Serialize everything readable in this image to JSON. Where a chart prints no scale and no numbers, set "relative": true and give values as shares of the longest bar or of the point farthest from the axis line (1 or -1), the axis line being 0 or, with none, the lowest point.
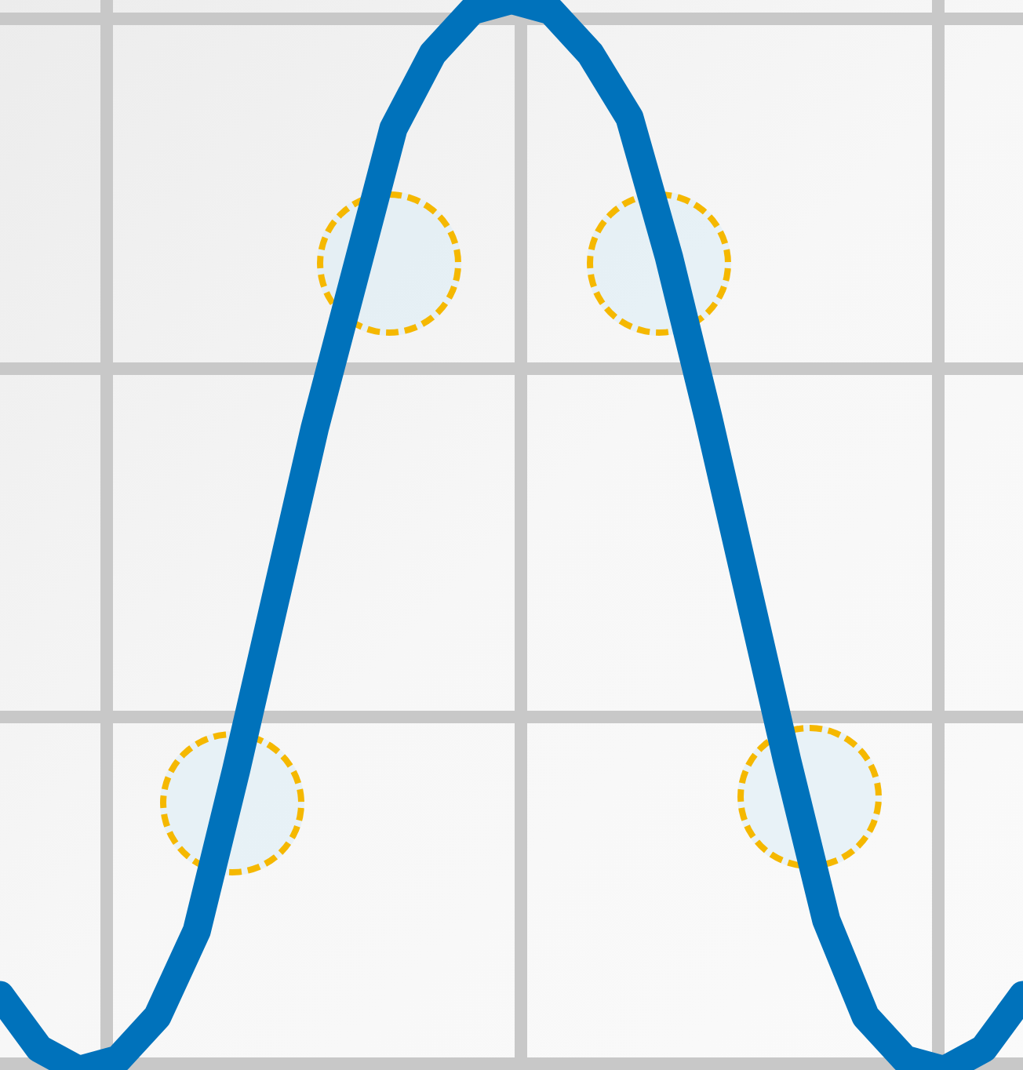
{
  "chart_data": {
    "type": "line",
    "relative": true,
    "grid": true,
    "legend": false,
    "categories": [
      null,
      null,
      null,
      null,
      null,
      null,
      null,
      null,
      null,
      null,
      null,
      null,
      null,
      null,
      null,
      null,
      null,
      null,
      null,
      null,
      null,
      null,
      null,
      null,
      null,
      null,
      null
    ],
    "series": [
      {
        "color": "#0072bb",
        "values": [
          0.07,
          0.02,
          0,
          0.01,
          0.05,
          0.13,
          0.28,
          0.44,
          0.6,
          0.74,
          0.88,
          0.95,
          0.99,
          1,
          0.99,
          0.95,
          0.89,
          0.76,
          0.61,
          0.45,
          0.29,
          0.14,
          0.05,
          0.01,
          0,
          0.02,
          0.07
        ]
      }
    ]
  }
}
